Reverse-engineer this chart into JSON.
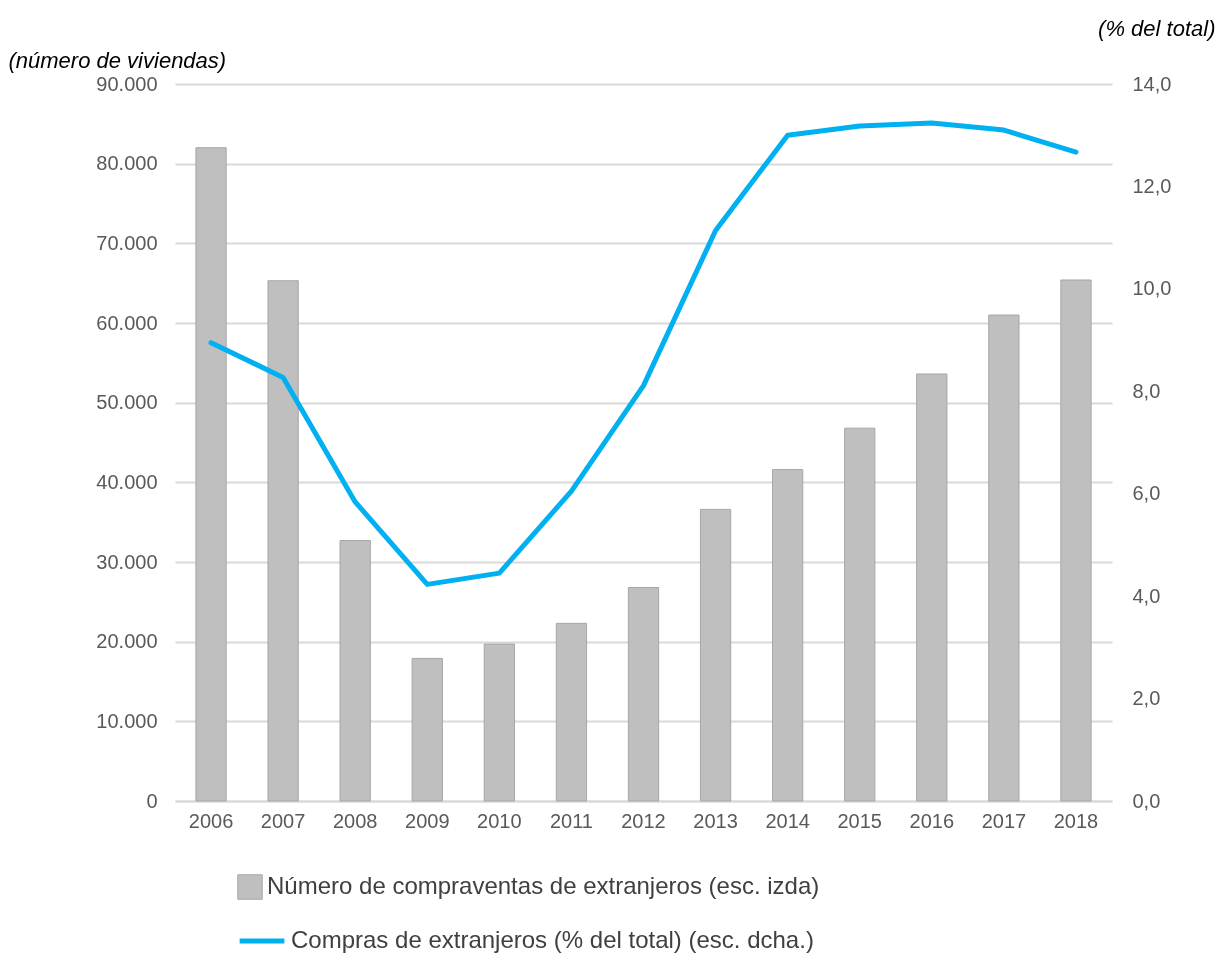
{
  "chart_data": {
    "type": "bar",
    "categories": [
      "2006",
      "2007",
      "2008",
      "2009",
      "2010",
      "2011",
      "2012",
      "2013",
      "2014",
      "2015",
      "2016",
      "2017",
      "2018"
    ],
    "series": [
      {
        "name": "Número de compraventas de extranjeros (esc. izda)",
        "color": "#bfbfbf",
        "values": [
          82000,
          65300,
          32700,
          17900,
          19700,
          22300,
          26800,
          36600,
          41600,
          46800,
          53600,
          61000,
          65400
        ]
      },
      {
        "name": "Compras de extranjeros (% del total) (esc. dcha.)",
        "type": "line",
        "axis": "y2",
        "color": "#00b0f0",
        "values": [
          8.95,
          8.27,
          5.84,
          4.23,
          4.45,
          6.05,
          8.11,
          11.14,
          13.0,
          13.18,
          13.24,
          13.1,
          12.67
        ]
      }
    ],
    "ylabel": "(número de viviendas)",
    "y2label": "(% del total)",
    "ylim": [
      0,
      90000
    ],
    "yticks": [
      0,
      {
        "value": 10000,
        "label": "10.000"
      },
      {
        "value": 20000,
        "label": "20.000"
      },
      {
        "value": 30000,
        "label": "30.000"
      },
      {
        "value": 40000,
        "label": "40.000"
      },
      {
        "value": 50000,
        "label": "50.000"
      },
      {
        "value": 60000,
        "label": "60.000"
      },
      {
        "value": 70000,
        "label": "70.000"
      },
      {
        "value": 80000,
        "label": "80.000"
      },
      {
        "value": 90000,
        "label": "90.000"
      }
    ],
    "y2lim": [
      0,
      14
    ],
    "y2ticks": [
      {
        "value": 0,
        "label": "0,0"
      },
      {
        "value": 2,
        "label": "2,0"
      },
      {
        "value": 4,
        "label": "4,0"
      },
      {
        "value": 6,
        "label": "6,0"
      },
      {
        "value": 8,
        "label": "8,0"
      },
      {
        "value": 10,
        "label": "10,0"
      },
      {
        "value": 12,
        "label": "12,0"
      },
      {
        "value": 14,
        "label": "14,0"
      }
    ],
    "grid": "y",
    "legend": "bottom"
  }
}
